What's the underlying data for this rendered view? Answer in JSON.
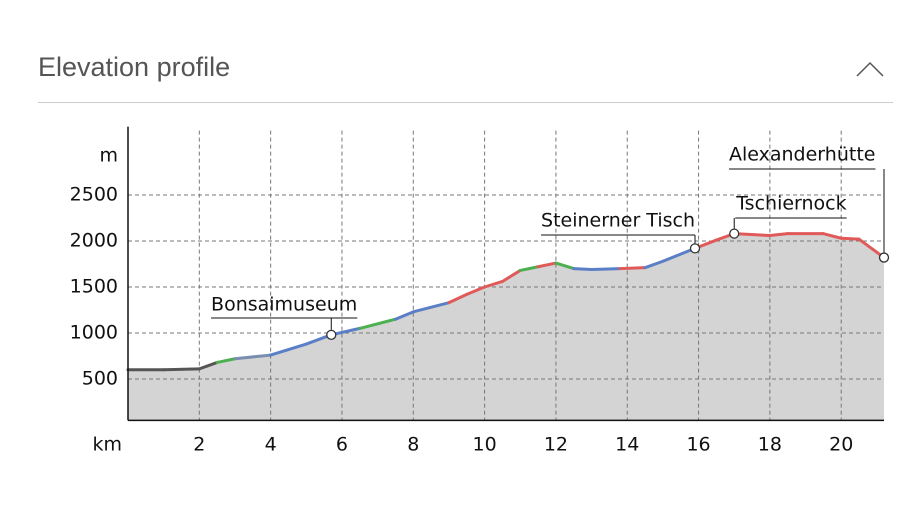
{
  "header": {
    "title": "Elevation profile"
  },
  "chart_data": {
    "type": "area",
    "ylabel": "m",
    "xlabel": "km",
    "x": [
      0,
      1,
      2,
      2.5,
      3,
      4,
      5,
      5.7,
      6.5,
      7.5,
      8,
      9,
      9.5,
      10,
      10.5,
      11,
      11.5,
      12,
      12.5,
      13,
      13.8,
      14.5,
      15,
      15.9,
      16.5,
      17,
      18,
      18.5,
      19.5,
      20,
      20.5,
      21.2
    ],
    "values": [
      600,
      600,
      610,
      680,
      720,
      760,
      880,
      980,
      1050,
      1150,
      1230,
      1330,
      1420,
      1500,
      1560,
      1680,
      1720,
      1760,
      1700,
      1690,
      1700,
      1710,
      1780,
      1920,
      2010,
      2080,
      2060,
      2080,
      2080,
      2030,
      2020,
      1820
    ],
    "segment_colors": [
      "#555555",
      "#555555",
      "#555555",
      "#555555",
      "#4caf50",
      "#7a8fb0",
      "#5b7fc7",
      "#5b7fc7",
      "#5b7fc7",
      "#4caf50",
      "#5b7fc7",
      "#5b7fc7",
      "#e05a5a",
      "#e05a5a",
      "#e05a5a",
      "#e05a5a",
      "#4caf50",
      "#e05a5a",
      "#4caf50",
      "#5b7fc7",
      "#5b7fc7",
      "#e05a5a",
      "#5b7fc7",
      "#5b7fc7",
      "#e05a5a",
      "#e05a5a",
      "#e05a5a",
      "#e05a5a",
      "#e05a5a",
      "#e05a5a",
      "#e05a5a",
      "#e05a5a"
    ],
    "fill": "#d4d4d4",
    "xlim": [
      0,
      21.2
    ],
    "ylim": [
      50,
      3200
    ],
    "xticks": [
      2,
      4,
      6,
      8,
      10,
      12,
      14,
      16,
      18,
      20
    ],
    "yticks": [
      500,
      1000,
      1500,
      2000,
      2500
    ],
    "grid": true,
    "annotations": [
      {
        "label": "Bonsaimuseum",
        "x": 5.7,
        "y": 980
      },
      {
        "label": "Steinerner Tisch",
        "x": 15.9,
        "y": 1920
      },
      {
        "label": "Tschiernock",
        "x": 17.0,
        "y": 2080
      },
      {
        "label": "Alexanderhütte",
        "x": 21.2,
        "y": 1820
      }
    ]
  }
}
